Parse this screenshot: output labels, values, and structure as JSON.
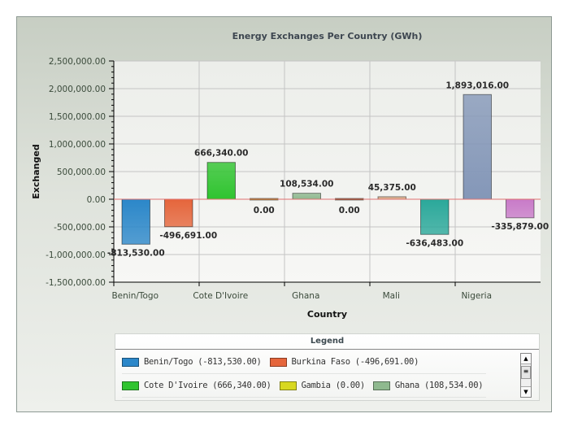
{
  "chart_data": {
    "type": "bar",
    "title": "Energy Exchanges Per Country (GWh)",
    "xlabel": "Country",
    "ylabel": "Exchanged",
    "ylim": [
      -1500000,
      2500000
    ],
    "yticks": [
      2500000,
      2000000,
      1500000,
      1000000,
      500000,
      0,
      -500000,
      -1000000,
      -1500000
    ],
    "ytick_labels": [
      "2,500,000.00",
      "2,000,000.00",
      "1,500,000.00",
      "1,000,000.00",
      "500,000.00",
      "0.00",
      "-500,000.00",
      "-1,000,000.00",
      "-1,500,000.00"
    ],
    "categories": [
      "Benin/Togo",
      "Burkina Faso",
      "Cote D'Ivoire",
      "Gambia",
      "Ghana",
      "",
      "Mali",
      "",
      "Nigeria",
      ""
    ],
    "x_tick_labels": [
      "Benin/Togo",
      "",
      "Cote D'Ivoire",
      "",
      "Ghana",
      "",
      "Mali",
      "",
      "Nigeria",
      ""
    ],
    "values": [
      -813530,
      -496691,
      666340,
      0,
      108534,
      0,
      45375,
      -636483,
      1893016,
      -335879
    ],
    "data_labels": [
      "-813,530.00",
      "-496,691.00",
      "666,340.00",
      "0.00",
      "108,534.00",
      "0.00",
      "45,375.00",
      "-636,483.00",
      "1,893,016.00",
      "-335,879.00"
    ],
    "colors": [
      "#2b87c9",
      "#e5653b",
      "#2fc42f",
      "#d8d820",
      "#8fb98f",
      "#a0702a",
      "#dcb08c",
      "#2aa89a",
      "#8497b8",
      "#c87ac8"
    ],
    "grid": true,
    "legend_placement": "bottom"
  },
  "legend": {
    "title": "Legend",
    "rows": [
      [
        {
          "label": "Benin/Togo (-813,530.00)",
          "color": "#2b87c9"
        },
        {
          "label": "Burkina Faso (-496,691.00)",
          "color": "#e5653b"
        }
      ],
      [
        {
          "label": "Cote D'Ivoire (666,340.00)",
          "color": "#2fc42f"
        },
        {
          "label": "Gambia (0.00)",
          "color": "#d8d820"
        },
        {
          "label": "Ghana (108,534.00)",
          "color": "#8fb98f"
        }
      ]
    ]
  }
}
